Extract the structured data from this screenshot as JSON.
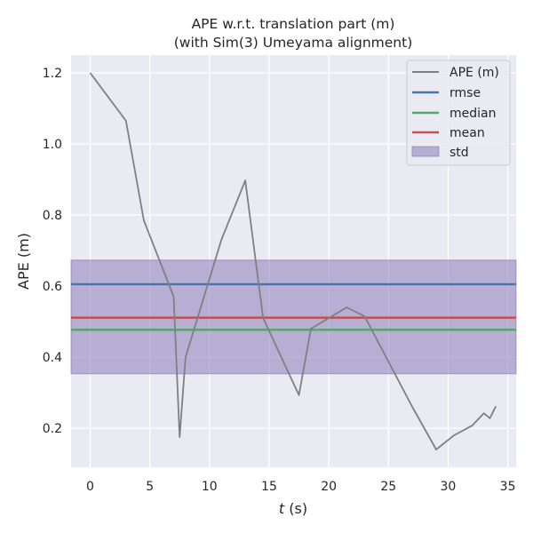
{
  "chart_data": {
    "type": "line",
    "title": "APE w.r.t. translation part (m)",
    "subtitle": "(with Sim(3) Umeyama alignment)",
    "xlabel_italic": "t",
    "xlabel_rest": " (s)",
    "ylabel": "APE (m)",
    "xlim": [
      -1.6,
      35.7
    ],
    "ylim": [
      0.09,
      1.25
    ],
    "xticks": [
      0,
      5,
      10,
      15,
      20,
      25,
      30,
      35
    ],
    "yticks": [
      0.2,
      0.4,
      0.6,
      0.8,
      1.0,
      1.2
    ],
    "xtick_labels": [
      "0",
      "5",
      "10",
      "15",
      "20",
      "25",
      "30",
      "35"
    ],
    "ytick_labels": [
      "0.2",
      "0.4",
      "0.6",
      "0.8",
      "1.0",
      "1.2"
    ],
    "grid": true,
    "legend_position": "top-right",
    "series": [
      {
        "name": "APE (m)",
        "color": "#808080",
        "x": [
          0,
          3,
          4.5,
          7,
          7.5,
          8,
          11,
          13,
          14.5,
          17.5,
          18.5,
          21.5,
          23,
          27,
          29,
          30.5,
          32,
          33,
          33.5,
          34
        ],
        "y": [
          1.2,
          1.065,
          0.785,
          0.57,
          0.175,
          0.4,
          0.73,
          0.897,
          0.51,
          0.293,
          0.48,
          0.54,
          0.515,
          0.26,
          0.14,
          0.18,
          0.207,
          0.242,
          0.228,
          0.262
        ]
      }
    ],
    "stats": {
      "rmse": {
        "name": "rmse",
        "value": 0.605,
        "color": "#4c72b0"
      },
      "median": {
        "name": "median",
        "value": 0.477,
        "color": "#55a868"
      },
      "mean": {
        "name": "mean",
        "value": 0.511,
        "color": "#c44e52"
      },
      "std": {
        "name": "std",
        "low": 0.353,
        "high": 0.673,
        "color": "#8172b3"
      }
    }
  }
}
